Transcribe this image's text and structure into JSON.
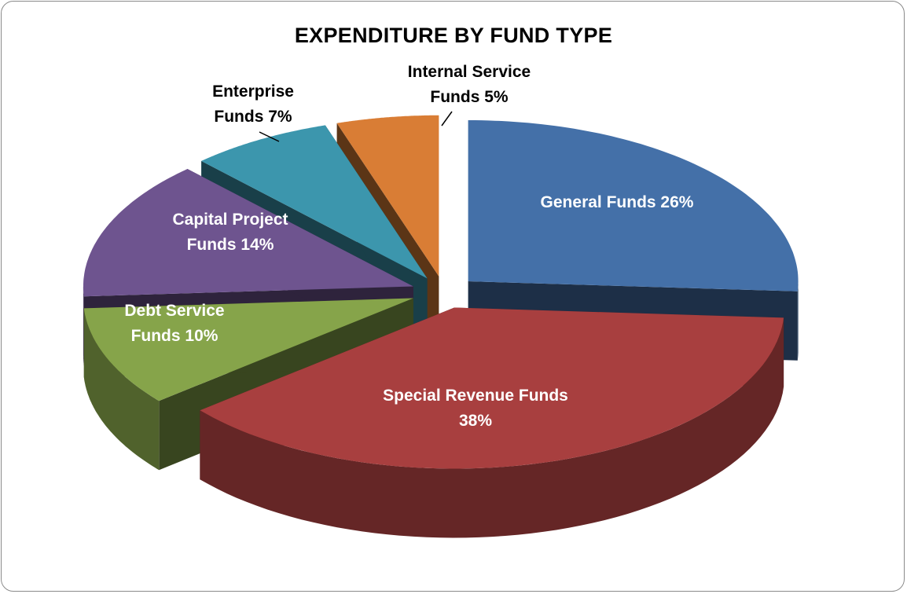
{
  "chart_data": {
    "type": "pie",
    "title": "EXPENDITURE BY FUND TYPE",
    "categories": [
      "General Funds",
      "Special Revenue Funds",
      "Debt Service Funds",
      "Capital Project Funds",
      "Enterprise Funds",
      "Internal Service Funds"
    ],
    "values": [
      26,
      38,
      10,
      14,
      7,
      5
    ],
    "value_labels": [
      "26%",
      "38%",
      "10%",
      "14%",
      "7%",
      "5%"
    ],
    "colors": [
      "#4470a8",
      "#a83f3f",
      "#86a44a",
      "#6e548f",
      "#3c96ad",
      "#d97d35"
    ]
  }
}
